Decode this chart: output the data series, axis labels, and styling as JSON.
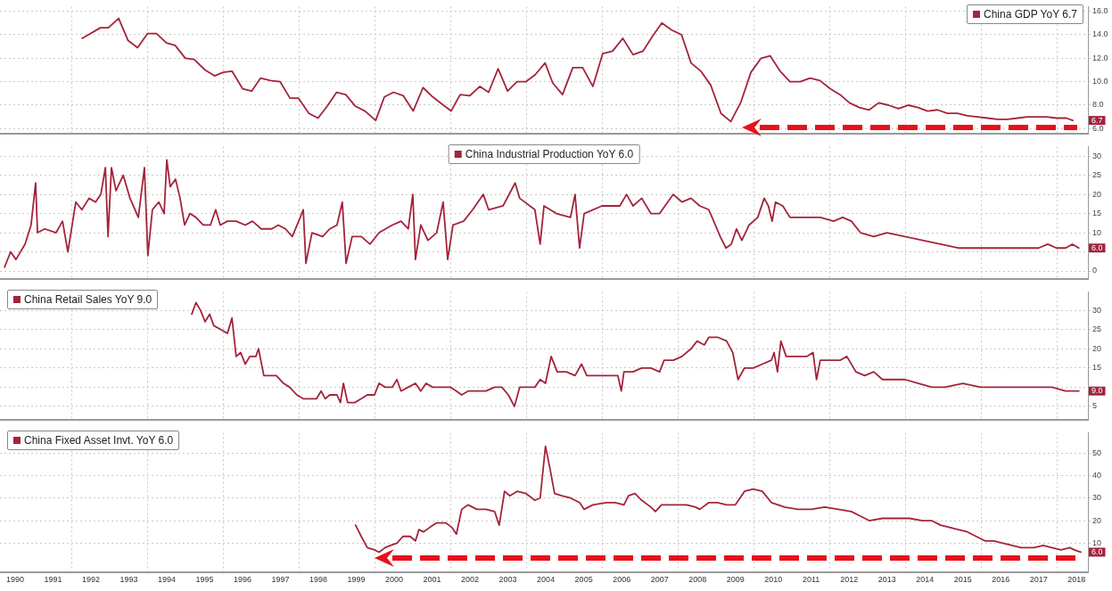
{
  "chart_data": [
    {
      "type": "line",
      "legend": "top right",
      "grid": true,
      "tick_labels": "y",
      "xlim": [
        1990.1,
        2018.8
      ],
      "xticks": [
        {
          "value": 1992,
          "label": null
        },
        {
          "value": 1994,
          "label": null
        },
        {
          "value": 1996,
          "label": null
        },
        {
          "value": 1998,
          "label": null
        },
        {
          "value": 2000,
          "label": null
        },
        {
          "value": 2002,
          "label": null
        },
        {
          "value": 2004,
          "label": null
        },
        {
          "value": 2006,
          "label": null
        },
        {
          "value": 2008,
          "label": null
        },
        {
          "value": 2010,
          "label": null
        },
        {
          "value": 2012,
          "label": null
        },
        {
          "value": 2014,
          "label": null
        },
        {
          "value": 2016,
          "label": null
        },
        {
          "value": 2018,
          "label": null
        }
      ],
      "ylim": [
        5.6,
        16.4
      ],
      "yticks": [
        {
          "value": 6,
          "label": "6.0"
        },
        {
          "value": 8,
          "label": "8.0"
        },
        {
          "value": 10,
          "label": "10.0"
        },
        {
          "value": 12,
          "label": "12.0"
        },
        {
          "value": 14,
          "label": "14.0"
        },
        {
          "value": 16,
          "label": "16.0"
        }
      ],
      "series": [
        {
          "name": "China GDP YoY 6.7",
          "color": "#a3243b",
          "x": [
            1992.27,
            1992.75,
            1992.96,
            1993.23,
            1993.48,
            1993.73,
            1993.99,
            1994.23,
            1994.49,
            1994.72,
            1994.99,
            1995.22,
            1995.51,
            1995.76,
            1995.99,
            1996.22,
            1996.5,
            1996.74,
            1996.97,
            1997.24,
            1997.49,
            1997.75,
            1997.97,
            1998.25,
            1998.49,
            1998.73,
            1998.98,
            1999.22,
            1999.48,
            1999.73,
            2000.01,
            2000.24,
            2000.48,
            2000.74,
            2001.0,
            2001.26,
            2001.48,
            2001.76,
            2002.0,
            2002.24,
            2002.49,
            2002.76,
            2002.99,
            2003.24,
            2003.49,
            2003.74,
            2003.97,
            2004.22,
            2004.48,
            2004.68,
            2004.94,
            2005.21,
            2005.47,
            2005.74,
            2006.0,
            2006.26,
            2006.53,
            2006.8,
            2007.06,
            2007.32,
            2007.56,
            2007.82,
            2008.08,
            2008.33,
            2008.59,
            2008.85,
            2009.12,
            2009.38,
            2009.65,
            2009.91,
            2010.18,
            2010.42,
            2010.68,
            2010.94,
            2011.21,
            2011.47,
            2011.73,
            2012.0,
            2012.26,
            2012.51,
            2012.77,
            2013.03,
            2013.28,
            2013.54,
            2013.8,
            2014.06,
            2014.32,
            2014.57,
            2014.83,
            2015.09,
            2015.36,
            2015.62,
            2015.89,
            2016.15,
            2016.42,
            2016.68,
            2016.94,
            2017.2,
            2017.45,
            2017.71,
            2017.97,
            2018.23,
            2018.4
          ],
          "values": [
            13.7,
            14.6,
            14.6,
            15.4,
            13.5,
            12.9,
            14.1,
            14.1,
            13.3,
            13.1,
            12.0,
            11.9,
            11.0,
            10.5,
            10.8,
            10.9,
            9.4,
            9.2,
            10.3,
            10.1,
            10.0,
            8.6,
            8.6,
            7.3,
            6.9,
            7.9,
            9.1,
            8.9,
            7.9,
            7.5,
            6.7,
            8.7,
            9.1,
            8.8,
            7.5,
            9.5,
            8.8,
            8.1,
            7.5,
            8.9,
            8.8,
            9.6,
            9.1,
            11.1,
            9.2,
            10.0,
            10.0,
            10.6,
            11.6,
            9.9,
            8.9,
            11.2,
            11.2,
            9.6,
            12.4,
            12.6,
            13.7,
            12.3,
            12.6,
            13.9,
            15.0,
            14.4,
            14.0,
            11.6,
            10.9,
            9.7,
            7.3,
            6.6,
            8.3,
            10.8,
            12.0,
            12.2,
            10.9,
            10.0,
            10.0,
            10.3,
            10.1,
            9.4,
            8.9,
            8.2,
            7.8,
            7.6,
            8.2,
            8.0,
            7.7,
            8.0,
            7.8,
            7.5,
            7.6,
            7.3,
            7.3,
            7.1,
            7.0,
            6.9,
            6.8,
            6.8,
            6.9,
            7.0,
            7.0,
            7.0,
            6.9,
            6.9,
            6.7
          ]
        }
      ],
      "annotations": [
        {
          "text": "6.7",
          "y": 6.7
        }
      ]
    },
    {
      "type": "line",
      "legend": "top",
      "grid": true,
      "tick_labels": "y",
      "xlim": [
        1990.1,
        2018.8
      ],
      "xticks": [
        {
          "value": 1992,
          "label": null
        },
        {
          "value": 1994,
          "label": null
        },
        {
          "value": 1996,
          "label": null
        },
        {
          "value": 1998,
          "label": null
        },
        {
          "value": 2000,
          "label": null
        },
        {
          "value": 2002,
          "label": null
        },
        {
          "value": 2004,
          "label": null
        },
        {
          "value": 2006,
          "label": null
        },
        {
          "value": 2008,
          "label": null
        },
        {
          "value": 2010,
          "label": null
        },
        {
          "value": 2012,
          "label": null
        },
        {
          "value": 2014,
          "label": null
        },
        {
          "value": 2016,
          "label": null
        },
        {
          "value": 2018,
          "label": null
        }
      ],
      "ylim": [
        -2,
        32.5
      ],
      "yticks": [
        0,
        {
          "value": 5,
          "label": null
        },
        10,
        15,
        20,
        25,
        30
      ],
      "series": [
        {
          "name": "China Industrial Production YoY 6.0",
          "color": "#a3243b",
          "x": [
            1990.22,
            1990.38,
            1990.52,
            1990.76,
            1990.92,
            1991.04,
            1991.09,
            1991.28,
            1991.58,
            1991.75,
            1991.89,
            1992.1,
            1992.26,
            1992.45,
            1992.62,
            1992.76,
            1992.88,
            1992.95,
            1993.04,
            1993.16,
            1993.35,
            1993.53,
            1993.75,
            1993.91,
            1994.0,
            1994.12,
            1994.29,
            1994.43,
            1994.5,
            1994.59,
            1994.73,
            1994.85,
            1994.97,
            1995.11,
            1995.27,
            1995.46,
            1995.65,
            1995.79,
            1995.91,
            1996.1,
            1996.33,
            1996.57,
            1996.76,
            1996.99,
            1997.27,
            1997.44,
            1997.63,
            1997.81,
            1997.98,
            1998.1,
            1998.17,
            1998.33,
            1998.61,
            1998.8,
            1998.99,
            1999.13,
            1999.23,
            1999.39,
            1999.63,
            1999.86,
            2000.1,
            2000.45,
            2000.68,
            2000.87,
            2000.99,
            2001.06,
            2001.2,
            2001.39,
            2001.62,
            2001.79,
            2001.91,
            2002.05,
            2002.33,
            2002.57,
            2002.85,
            2002.99,
            2003.37,
            2003.69,
            2003.81,
            2004.21,
            2004.35,
            2004.45,
            2004.78,
            2005.15,
            2005.27,
            2005.39,
            2005.51,
            2005.98,
            2006.45,
            2006.63,
            2006.8,
            2007.03,
            2007.27,
            2007.5,
            2007.86,
            2008.09,
            2008.33,
            2008.56,
            2008.8,
            2009.1,
            2009.25,
            2009.39,
            2009.53,
            2009.67,
            2009.86,
            2010.09,
            2010.26,
            2010.37,
            2010.47,
            2010.56,
            2010.75,
            2010.94,
            2011.27,
            2011.74,
            2012.09,
            2012.33,
            2012.56,
            2012.8,
            2013.15,
            2013.5,
            2013.97,
            2014.44,
            2014.91,
            2015.38,
            2015.97,
            2016.44,
            2016.91,
            2017.5,
            2017.74,
            2017.97,
            2018.21,
            2018.39,
            2018.56
          ],
          "values": [
            1,
            5,
            3,
            7,
            12,
            23,
            10,
            11,
            10,
            13,
            5,
            18,
            16,
            19,
            18,
            20,
            27,
            9,
            27,
            21,
            25,
            19,
            14,
            27,
            4,
            16,
            18,
            15,
            29,
            22,
            24,
            19,
            12,
            15,
            14,
            12,
            12,
            16,
            12,
            13,
            13,
            12,
            13,
            11,
            11,
            12,
            11,
            9,
            13,
            16,
            2,
            10,
            9,
            11,
            12,
            18,
            2,
            9,
            9,
            7,
            10,
            12,
            13,
            11,
            20,
            3,
            12,
            8,
            10,
            18,
            3,
            12,
            13,
            16,
            20,
            16,
            17,
            23,
            19,
            16,
            7,
            17,
            15,
            14,
            20,
            6,
            15,
            17,
            17,
            20,
            17,
            19,
            15,
            15,
            20,
            18,
            19,
            17,
            16,
            9,
            6,
            7,
            11,
            8,
            12,
            14,
            19,
            17,
            13,
            18,
            17,
            14,
            14,
            14,
            13,
            14,
            13,
            10,
            9,
            10,
            9,
            8,
            7,
            6,
            6,
            6,
            6,
            6,
            7,
            6,
            6,
            7,
            6
          ]
        }
      ],
      "annotations": [
        {
          "text": "6.0",
          "y": 6
        }
      ]
    },
    {
      "type": "line",
      "legend": "top left",
      "grid": true,
      "tick_labels": "y",
      "xlim": [
        1990.1,
        2018.8
      ],
      "xticks": [
        {
          "value": 1992,
          "label": null
        },
        {
          "value": 1994,
          "label": null
        },
        {
          "value": 1996,
          "label": null
        },
        {
          "value": 1998,
          "label": null
        },
        {
          "value": 2000,
          "label": null
        },
        {
          "value": 2002,
          "label": null
        },
        {
          "value": 2004,
          "label": null
        },
        {
          "value": 2006,
          "label": null
        },
        {
          "value": 2008,
          "label": null
        },
        {
          "value": 2010,
          "label": null
        },
        {
          "value": 2012,
          "label": null
        },
        {
          "value": 2014,
          "label": null
        },
        {
          "value": 2016,
          "label": null
        },
        {
          "value": 2018,
          "label": null
        }
      ],
      "ylim": [
        1.6,
        34.8
      ],
      "yticks": [
        5,
        {
          "value": 10,
          "label": null
        },
        15,
        20,
        25,
        30
      ],
      "series": [
        {
          "name": "China Retail Sales YoY 9.0",
          "color": "#a3243b",
          "x": [
            1995.16,
            1995.27,
            1995.39,
            1995.51,
            1995.63,
            1995.74,
            1995.93,
            1996.1,
            1996.22,
            1996.33,
            1996.45,
            1996.57,
            1996.69,
            1996.85,
            1996.92,
            1997.06,
            1997.23,
            1997.39,
            1997.58,
            1997.74,
            1997.93,
            1998.1,
            1998.28,
            1998.45,
            1998.57,
            1998.68,
            1998.8,
            1998.99,
            1999.08,
            1999.16,
            1999.27,
            1999.46,
            1999.63,
            1999.79,
            1999.98,
            2000.1,
            2000.26,
            2000.45,
            2000.57,
            2000.68,
            2000.87,
            2001.06,
            2001.2,
            2001.34,
            2001.51,
            2001.74,
            2001.98,
            2002.14,
            2002.28,
            2002.45,
            2002.68,
            2002.92,
            2003.15,
            2003.34,
            2003.51,
            2003.67,
            2003.81,
            2004.02,
            2004.21,
            2004.35,
            2004.49,
            2004.64,
            2004.8,
            2005.04,
            2005.27,
            2005.44,
            2005.58,
            2005.74,
            2005.98,
            2006.21,
            2006.4,
            2006.49,
            2006.56,
            2006.8,
            2007.03,
            2007.27,
            2007.5,
            2007.62,
            2007.86,
            2008.09,
            2008.33,
            2008.49,
            2008.68,
            2008.8,
            2009.03,
            2009.27,
            2009.43,
            2009.57,
            2009.74,
            2009.97,
            2010.21,
            2010.45,
            2010.52,
            2010.61,
            2010.7,
            2010.84,
            2011.15,
            2011.39,
            2011.55,
            2011.64,
            2011.74,
            2011.97,
            2012.26,
            2012.44,
            2012.68,
            2012.91,
            2013.15,
            2013.38,
            2013.62,
            2013.97,
            2014.33,
            2014.68,
            2015.03,
            2015.5,
            2015.97,
            2016.44,
            2016.91,
            2017.38,
            2017.85,
            2018.21,
            2018.39,
            2018.56
          ],
          "values": [
            29,
            32,
            30,
            27,
            29,
            26,
            25,
            24,
            28,
            18,
            19,
            16,
            18,
            18,
            20,
            13,
            13,
            13,
            11,
            10,
            8,
            7,
            7,
            7,
            9,
            7,
            8,
            8,
            6,
            11,
            6,
            6,
            7,
            8,
            8,
            11,
            10,
            10,
            12,
            9,
            10,
            11,
            9,
            11,
            10,
            10,
            10,
            9,
            8,
            9,
            9,
            9,
            10,
            10,
            8,
            5,
            10,
            10,
            10,
            12,
            11,
            18,
            14,
            14,
            13,
            16,
            13,
            13,
            13,
            13,
            13,
            9,
            14,
            14,
            15,
            15,
            14,
            17,
            17,
            18,
            20,
            22,
            21,
            23,
            23,
            22,
            19,
            12,
            15,
            15,
            16,
            17,
            19,
            14,
            22,
            18,
            18,
            18,
            19,
            12,
            17,
            17,
            17,
            18,
            14,
            13,
            14,
            12,
            12,
            12,
            11,
            10,
            10,
            11,
            10,
            10,
            10,
            10,
            10,
            9,
            9,
            9
          ]
        }
      ],
      "annotations": [
        {
          "text": "9.0",
          "y": 9
        }
      ]
    },
    {
      "type": "line",
      "legend": "top left",
      "grid": true,
      "xlim": [
        1990.1,
        2018.8
      ],
      "xticks": [
        {
          "value": 1990.5,
          "label": "1990"
        },
        {
          "value": 1991.5,
          "label": "1991"
        },
        {
          "value": 1992,
          "label": null
        },
        {
          "value": 1992.5,
          "label": "1992"
        },
        {
          "value": 1993.5,
          "label": "1993"
        },
        {
          "value": 1994,
          "label": null
        },
        {
          "value": 1994.5,
          "label": "1994"
        },
        {
          "value": 1995.5,
          "label": "1995"
        },
        {
          "value": 1996,
          "label": null
        },
        {
          "value": 1996.5,
          "label": "1996"
        },
        {
          "value": 1997.5,
          "label": "1997"
        },
        {
          "value": 1998,
          "label": null
        },
        {
          "value": 1998.5,
          "label": "1998"
        },
        {
          "value": 1999.5,
          "label": "1999"
        },
        {
          "value": 2000,
          "label": null
        },
        {
          "value": 2000.5,
          "label": "2000"
        },
        {
          "value": 2001.5,
          "label": "2001"
        },
        {
          "value": 2002,
          "label": null
        },
        {
          "value": 2002.5,
          "label": "2002"
        },
        {
          "value": 2003.5,
          "label": "2003"
        },
        {
          "value": 2004,
          "label": null
        },
        {
          "value": 2004.5,
          "label": "2004"
        },
        {
          "value": 2005.5,
          "label": "2005"
        },
        {
          "value": 2006,
          "label": null
        },
        {
          "value": 2006.5,
          "label": "2006"
        },
        {
          "value": 2007.5,
          "label": "2007"
        },
        {
          "value": 2008,
          "label": null
        },
        {
          "value": 2008.5,
          "label": "2008"
        },
        {
          "value": 2009.5,
          "label": "2009"
        },
        {
          "value": 2010,
          "label": null
        },
        {
          "value": 2010.5,
          "label": "2010"
        },
        {
          "value": 2011.5,
          "label": "2011"
        },
        {
          "value": 2012,
          "label": null
        },
        {
          "value": 2012.5,
          "label": "2012"
        },
        {
          "value": 2013.5,
          "label": "2013"
        },
        {
          "value": 2014,
          "label": null
        },
        {
          "value": 2014.5,
          "label": "2014"
        },
        {
          "value": 2015.5,
          "label": "2015"
        },
        {
          "value": 2016,
          "label": null
        },
        {
          "value": 2016.5,
          "label": "2016"
        },
        {
          "value": 2017.5,
          "label": "2017"
        },
        {
          "value": 2018,
          "label": null
        },
        {
          "value": 2018.5,
          "label": "2018"
        }
      ],
      "ylim": [
        -3,
        59
      ],
      "yticks": [
        10,
        20,
        30,
        40,
        50
      ],
      "series": [
        {
          "name": "China Fixed Asset Invt. YoY 6.0",
          "color": "#a3243b",
          "x": [
            1999.48,
            1999.63,
            1999.79,
            1999.98,
            2000.1,
            2000.26,
            2000.4,
            2000.57,
            2000.73,
            2000.92,
            2001.06,
            2001.15,
            2001.27,
            2001.44,
            2001.62,
            2001.86,
            2002.02,
            2002.14,
            2002.28,
            2002.45,
            2002.68,
            2002.92,
            2003.15,
            2003.27,
            2003.41,
            2003.55,
            2003.74,
            2003.98,
            2004.21,
            2004.35,
            2004.49,
            2004.61,
            2004.73,
            2004.92,
            2005.15,
            2005.39,
            2005.51,
            2005.74,
            2006.09,
            2006.33,
            2006.56,
            2006.68,
            2006.85,
            2007.03,
            2007.27,
            2007.39,
            2007.55,
            2007.86,
            2008.21,
            2008.45,
            2008.56,
            2008.8,
            2009.03,
            2009.27,
            2009.5,
            2009.74,
            2009.97,
            2010.21,
            2010.45,
            2010.8,
            2011.15,
            2011.5,
            2011.86,
            2012.21,
            2012.56,
            2012.8,
            2013.03,
            2013.38,
            2013.74,
            2014.09,
            2014.44,
            2014.68,
            2014.91,
            2015.15,
            2015.38,
            2015.62,
            2015.85,
            2016.09,
            2016.32,
            2016.56,
            2016.8,
            2017.03,
            2017.38,
            2017.62,
            2017.85,
            2018.09,
            2018.32,
            2018.44,
            2018.61
          ],
          "values": [
            18,
            13,
            8,
            7,
            6,
            8,
            9,
            10,
            13,
            13,
            11,
            16,
            15,
            17,
            19,
            19,
            17,
            14,
            25,
            27,
            25,
            25,
            24,
            18,
            33,
            31,
            33,
            32,
            29,
            30,
            53,
            43,
            32,
            31,
            30,
            28,
            25,
            27,
            28,
            28,
            27,
            31,
            32,
            29,
            26,
            24,
            27,
            27,
            27,
            26,
            25,
            28,
            28,
            27,
            27,
            33,
            34,
            33,
            28,
            26,
            25,
            25,
            26,
            25,
            24,
            22,
            20,
            21,
            21,
            21,
            20,
            20,
            18,
            17,
            16,
            15,
            13,
            11,
            11,
            10,
            9,
            8,
            8,
            9,
            8,
            7,
            8,
            7,
            6
          ]
        }
      ],
      "annotations": [
        {
          "text": "6.0",
          "y": 6
        }
      ]
    }
  ]
}
